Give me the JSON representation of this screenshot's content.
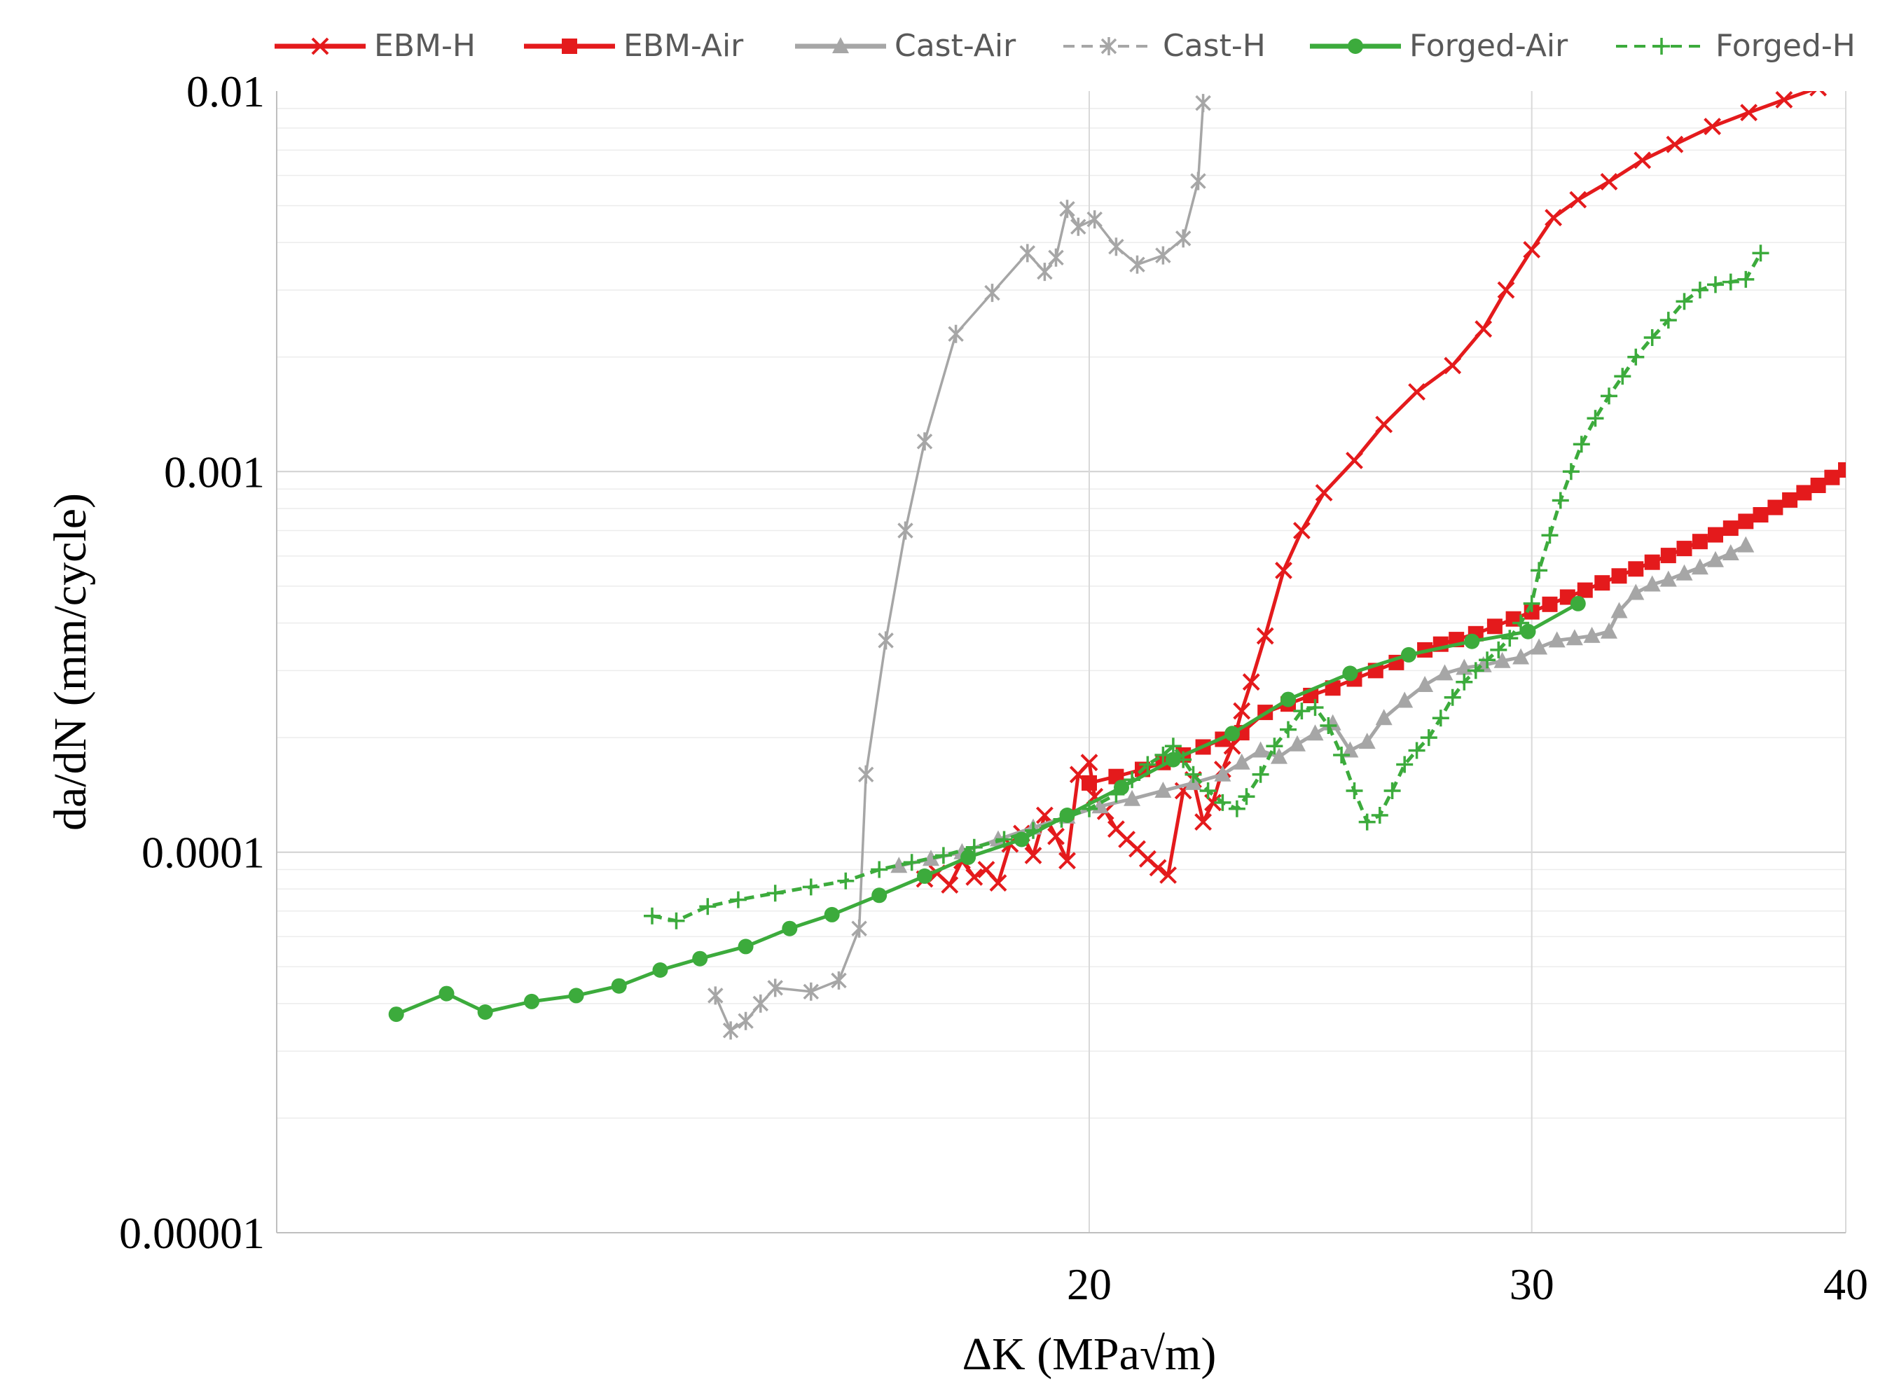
{
  "chart_data": {
    "type": "scatter",
    "xscale": "log",
    "yscale": "log",
    "xlim": [
      9.5,
      40
    ],
    "ylim": [
      1e-05,
      0.01
    ],
    "xlabel": "ΔK (MPa√m)",
    "ylabel": "da/dN (mm/cycle)",
    "xticks": [
      {
        "value": 20,
        "label": "20"
      },
      {
        "value": 30,
        "label": "30"
      },
      {
        "value": 40,
        "label": "40"
      }
    ],
    "yticks": [
      {
        "value": 0.01,
        "label": "0.01"
      },
      {
        "value": 0.001,
        "label": "0.001"
      },
      {
        "value": 0.0001,
        "label": "0.0001"
      },
      {
        "value": 1e-05,
        "label": "0.00001"
      }
    ],
    "grid": true,
    "legend_position": "top",
    "series": [
      {
        "name": "EBM-H",
        "color": "#e41a1c",
        "marker": "x",
        "dash": "solid",
        "points": [
          [
            17.2,
            8.5e-05
          ],
          [
            17.4,
            8.8e-05
          ],
          [
            17.6,
            8.2e-05
          ],
          [
            17.8,
            9.5e-05
          ],
          [
            18.0,
            8.6e-05
          ],
          [
            18.2,
            9e-05
          ],
          [
            18.4,
            8.3e-05
          ],
          [
            18.6,
            0.000105
          ],
          [
            18.8,
            0.000112
          ],
          [
            19.0,
            9.8e-05
          ],
          [
            19.2,
            0.000125
          ],
          [
            19.4,
            0.00011
          ],
          [
            19.6,
            9.5e-05
          ],
          [
            19.8,
            0.00016
          ],
          [
            20.0,
            0.000172
          ],
          [
            20.1,
            0.00014
          ],
          [
            20.3,
            0.000128
          ],
          [
            20.5,
            0.000115
          ],
          [
            20.7,
            0.000108
          ],
          [
            20.9,
            0.000102
          ],
          [
            21.1,
            9.6e-05
          ],
          [
            21.3,
            9.1e-05
          ],
          [
            21.5,
            8.7e-05
          ],
          [
            21.8,
            0.000145
          ],
          [
            22.0,
            0.000155
          ],
          [
            22.2,
            0.00012
          ],
          [
            22.4,
            0.000135
          ],
          [
            22.6,
            0.000165
          ],
          [
            22.8,
            0.00019
          ],
          [
            23.0,
            0.000235
          ],
          [
            23.2,
            0.00028
          ],
          [
            23.5,
            0.00037
          ],
          [
            23.9,
            0.00055
          ],
          [
            24.3,
            0.0007
          ],
          [
            24.8,
            0.00088
          ],
          [
            25.5,
            0.00107
          ],
          [
            26.2,
            0.00133
          ],
          [
            27.0,
            0.00162
          ],
          [
            27.9,
            0.0019
          ],
          [
            28.7,
            0.00237
          ],
          [
            29.3,
            0.003
          ],
          [
            30.0,
            0.00383
          ],
          [
            30.6,
            0.00465
          ],
          [
            31.3,
            0.00518
          ],
          [
            32.2,
            0.00578
          ],
          [
            33.2,
            0.00658
          ],
          [
            34.2,
            0.00724
          ],
          [
            35.4,
            0.00807
          ],
          [
            36.6,
            0.00878
          ],
          [
            37.8,
            0.00949
          ],
          [
            39.0,
            0.0102
          ]
        ]
      },
      {
        "name": "EBM-Air",
        "color": "#e41a1c",
        "marker": "square",
        "dash": "solid",
        "points": [
          [
            20.0,
            0.000152
          ],
          [
            20.5,
            0.000158
          ],
          [
            21.0,
            0.000165
          ],
          [
            21.4,
            0.000172
          ],
          [
            21.8,
            0.00018
          ],
          [
            22.2,
            0.000189
          ],
          [
            22.6,
            0.000198
          ],
          [
            23.0,
            0.000206
          ],
          [
            23.5,
            0.000233
          ],
          [
            24.0,
            0.000245
          ],
          [
            24.5,
            0.000258
          ],
          [
            25.0,
            0.00027
          ],
          [
            25.5,
            0.000285
          ],
          [
            26.0,
            0.0003
          ],
          [
            26.5,
            0.000315
          ],
          [
            27.2,
            0.00034
          ],
          [
            27.6,
            0.000352
          ],
          [
            28.0,
            0.000362
          ],
          [
            28.5,
            0.000375
          ],
          [
            29.0,
            0.000392
          ],
          [
            29.5,
            0.00041
          ],
          [
            30.0,
            0.000428
          ],
          [
            30.5,
            0.000448
          ],
          [
            31.0,
            0.000468
          ],
          [
            31.5,
            0.000488
          ],
          [
            32.0,
            0.00051
          ],
          [
            32.5,
            0.000532
          ],
          [
            33.0,
            0.000555
          ],
          [
            33.5,
            0.000578
          ],
          [
            34.0,
            0.000602
          ],
          [
            34.5,
            0.000628
          ],
          [
            35.0,
            0.000655
          ],
          [
            35.5,
            0.000682
          ],
          [
            36.0,
            0.00071
          ],
          [
            36.5,
            0.00074
          ],
          [
            37.0,
            0.00077
          ],
          [
            37.5,
            0.000805
          ],
          [
            38.0,
            0.000842
          ],
          [
            38.5,
            0.00088
          ],
          [
            39.0,
            0.00092
          ],
          [
            39.5,
            0.000965
          ],
          [
            40.0,
            0.00101
          ]
        ]
      },
      {
        "name": "Cast-Air",
        "color": "#a6a6a6",
        "marker": "triangle",
        "dash": "solid",
        "points": [
          [
            16.8,
            9.2e-05
          ],
          [
            17.3,
            9.6e-05
          ],
          [
            17.8,
            0.0001
          ],
          [
            18.4,
            0.000108
          ],
          [
            19.0,
            0.000116
          ],
          [
            19.6,
            0.000124
          ],
          [
            20.2,
            0.000132
          ],
          [
            20.8,
            0.000138
          ],
          [
            21.4,
            0.000145
          ],
          [
            22.0,
            0.000152
          ],
          [
            22.6,
            0.00016
          ],
          [
            23.0,
            0.000172
          ],
          [
            23.4,
            0.000185
          ],
          [
            23.8,
            0.000178
          ],
          [
            24.2,
            0.000192
          ],
          [
            24.6,
            0.000205
          ],
          [
            25.0,
            0.000218
          ],
          [
            25.4,
            0.000185
          ],
          [
            25.8,
            0.000195
          ],
          [
            26.2,
            0.000225
          ],
          [
            26.7,
            0.00025
          ],
          [
            27.2,
            0.000275
          ],
          [
            27.7,
            0.000295
          ],
          [
            28.2,
            0.000305
          ],
          [
            28.7,
            0.00031
          ],
          [
            29.2,
            0.000318
          ],
          [
            29.7,
            0.000325
          ],
          [
            30.2,
            0.000345
          ],
          [
            30.7,
            0.00036
          ],
          [
            31.2,
            0.000365
          ],
          [
            31.7,
            0.00037
          ],
          [
            32.2,
            0.00038
          ],
          [
            32.5,
            0.00043
          ],
          [
            33.0,
            0.00048
          ],
          [
            33.5,
            0.000505
          ],
          [
            34.0,
            0.00052
          ],
          [
            34.5,
            0.00054
          ],
          [
            35.0,
            0.00056
          ],
          [
            35.5,
            0.000585
          ],
          [
            36.0,
            0.00061
          ],
          [
            36.5,
            0.00064
          ]
        ]
      },
      {
        "name": "Cast-H",
        "color": "#a6a6a6",
        "marker": "star",
        "dash": "solid",
        "points": [
          [
            14.2,
            4.2e-05
          ],
          [
            14.4,
            3.4e-05
          ],
          [
            14.6,
            3.6e-05
          ],
          [
            14.8,
            4e-05
          ],
          [
            15.0,
            4.4e-05
          ],
          [
            15.5,
            4.3e-05
          ],
          [
            15.9,
            4.6e-05
          ],
          [
            16.2,
            6.3e-05
          ],
          [
            16.3,
            0.00016
          ],
          [
            16.6,
            0.00036
          ],
          [
            16.9,
            0.0007
          ],
          [
            17.2,
            0.0012
          ],
          [
            17.7,
            0.0023
          ],
          [
            18.3,
            0.00295
          ],
          [
            18.9,
            0.00375
          ],
          [
            19.2,
            0.00335
          ],
          [
            19.4,
            0.00365
          ],
          [
            19.6,
            0.0049
          ],
          [
            19.8,
            0.0044
          ],
          [
            20.1,
            0.0046
          ],
          [
            20.5,
            0.0039
          ],
          [
            20.9,
            0.0035
          ],
          [
            21.4,
            0.0037
          ],
          [
            21.8,
            0.0041
          ],
          [
            22.1,
            0.0058
          ],
          [
            22.2,
            0.0093
          ]
        ]
      },
      {
        "name": "Forged-Air",
        "color": "#3cab3c",
        "marker": "circle",
        "dash": "solid",
        "points": [
          [
            10.6,
            3.75e-05
          ],
          [
            11.1,
            4.25e-05
          ],
          [
            11.5,
            3.8e-05
          ],
          [
            12.0,
            4.05e-05
          ],
          [
            12.5,
            4.2e-05
          ],
          [
            13.0,
            4.45e-05
          ],
          [
            13.5,
            4.9e-05
          ],
          [
            14.0,
            5.25e-05
          ],
          [
            14.6,
            5.65e-05
          ],
          [
            15.2,
            6.3e-05
          ],
          [
            15.8,
            6.85e-05
          ],
          [
            16.5,
            7.7e-05
          ],
          [
            17.2,
            8.65e-05
          ],
          [
            17.9,
            9.7e-05
          ],
          [
            18.8,
            0.000108
          ],
          [
            19.6,
            0.000125
          ],
          [
            20.6,
            0.000148
          ],
          [
            21.6,
            0.000175
          ],
          [
            22.8,
            0.000205
          ],
          [
            24.0,
            0.000252
          ],
          [
            25.4,
            0.000295
          ],
          [
            26.8,
            0.00033
          ],
          [
            28.4,
            0.000358
          ],
          [
            29.9,
            0.00038
          ],
          [
            31.3,
            0.00045
          ]
        ]
      },
      {
        "name": "Forged-H",
        "color": "#3cab3c",
        "marker": "plus",
        "dash": "dashed",
        "points": [
          [
            13.4,
            6.8e-05
          ],
          [
            13.7,
            6.6e-05
          ],
          [
            14.1,
            7.2e-05
          ],
          [
            14.5,
            7.5e-05
          ],
          [
            15.0,
            7.8e-05
          ],
          [
            15.5,
            8.1e-05
          ],
          [
            16.0,
            8.4e-05
          ],
          [
            16.5,
            9e-05
          ],
          [
            17.0,
            9.4e-05
          ],
          [
            17.5,
            9.8e-05
          ],
          [
            18.0,
            0.000103
          ],
          [
            18.5,
            0.000108
          ],
          [
            19.0,
            0.000114
          ],
          [
            19.5,
            0.000122
          ],
          [
            20.0,
            0.00013
          ],
          [
            20.5,
            0.000142
          ],
          [
            20.8,
            0.000155
          ],
          [
            21.1,
            0.00017
          ],
          [
            21.4,
            0.00018
          ],
          [
            21.6,
            0.00019
          ],
          [
            21.8,
            0.000175
          ],
          [
            22.0,
            0.00016
          ],
          [
            22.3,
            0.000145
          ],
          [
            22.6,
            0.000135
          ],
          [
            22.9,
            0.00013
          ],
          [
            23.1,
            0.00014
          ],
          [
            23.4,
            0.00016
          ],
          [
            23.7,
            0.00019
          ],
          [
            24.0,
            0.00021
          ],
          [
            24.3,
            0.000235
          ],
          [
            24.6,
            0.00024
          ],
          [
            24.9,
            0.000215
          ],
          [
            25.2,
            0.00018
          ],
          [
            25.5,
            0.000145
          ],
          [
            25.8,
            0.00012
          ],
          [
            26.1,
            0.000125
          ],
          [
            26.4,
            0.000145
          ],
          [
            26.7,
            0.00017
          ],
          [
            27.0,
            0.000185
          ],
          [
            27.3,
            0.0002
          ],
          [
            27.6,
            0.000225
          ],
          [
            27.9,
            0.000255
          ],
          [
            28.2,
            0.00028
          ],
          [
            28.5,
            0.0003
          ],
          [
            28.8,
            0.00032
          ],
          [
            29.1,
            0.00034
          ],
          [
            29.4,
            0.000365
          ],
          [
            29.7,
            0.0004
          ],
          [
            30.0,
            0.00045
          ],
          [
            30.2,
            0.00055
          ],
          [
            30.5,
            0.00068
          ],
          [
            30.8,
            0.00084
          ],
          [
            31.1,
            0.001
          ],
          [
            31.4,
            0.00118
          ],
          [
            31.8,
            0.00138
          ],
          [
            32.2,
            0.00158
          ],
          [
            32.6,
            0.00178
          ],
          [
            33.0,
            0.002
          ],
          [
            33.5,
            0.00225
          ],
          [
            34.0,
            0.0025
          ],
          [
            34.5,
            0.0028
          ],
          [
            35.0,
            0.003
          ],
          [
            35.5,
            0.0031
          ],
          [
            36.0,
            0.00315
          ],
          [
            36.5,
            0.0032
          ],
          [
            37.0,
            0.00375
          ]
        ]
      }
    ]
  }
}
